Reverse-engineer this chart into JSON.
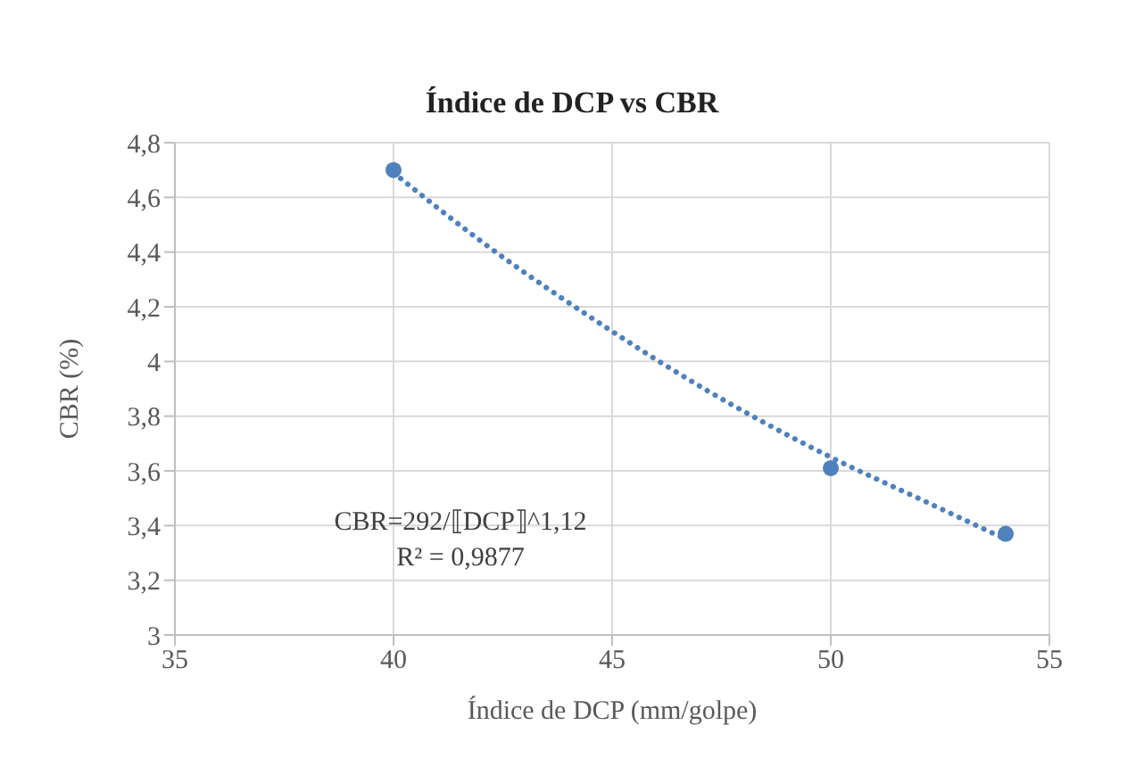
{
  "chart_data": {
    "type": "scatter",
    "title": "Índice de DCP vs CBR",
    "xlabel": "Índice de DCP (mm/golpe)",
    "ylabel": "CBR (%)",
    "xlim": [
      35,
      55
    ],
    "xticks": [
      35,
      40,
      45,
      50,
      55
    ],
    "ylim": [
      3,
      4.8
    ],
    "yticks": [
      3,
      {
        "value": 3.2,
        "label": "3,2"
      },
      {
        "value": 3.4,
        "label": "3,4"
      },
      {
        "value": 3.6,
        "label": "3,6"
      },
      {
        "value": 3.8,
        "label": "3,8"
      },
      4,
      {
        "value": 4.2,
        "label": "4,2"
      },
      {
        "value": 4.4,
        "label": "4,4"
      },
      {
        "value": 4.6,
        "label": "4,6"
      },
      {
        "value": 4.8,
        "label": "4,8"
      }
    ],
    "grid": true,
    "legend": false,
    "series": [
      {
        "color": "#4f81bd",
        "marker": "circle",
        "x": [
          40,
          50,
          54
        ],
        "values": [
          4.7,
          3.61,
          3.37
        ]
      },
      {
        "type": "line",
        "color": "#4f81bd",
        "marker": "none",
        "line_style": "dotted",
        "x": [
          40,
          42,
          45,
          47,
          50,
          52,
          54
        ],
        "values": [
          4.69,
          4.44,
          4.11,
          3.91,
          3.65,
          3.5,
          3.35
        ]
      }
    ],
    "annotations": [
      "CBR=292/⟦DCP⟧^1,12",
      "R² = 0,9877"
    ]
  }
}
